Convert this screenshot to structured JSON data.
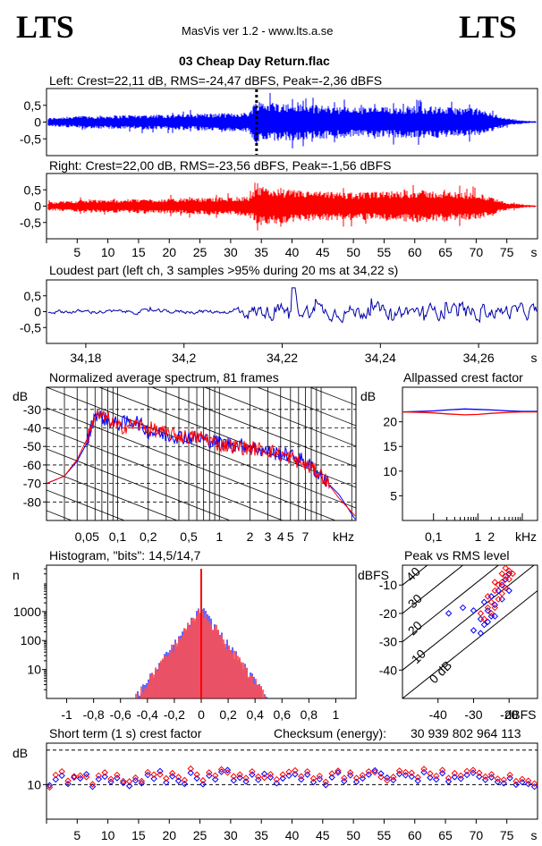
{
  "header": {
    "logo_left": "LTS",
    "logo_right": "LTS",
    "app_title": "MasVis ver 1.2 - www.lts.a.se",
    "file_title": "03 Cheap Day Return.flac"
  },
  "colors": {
    "left": "#0000ff",
    "right": "#ff0000",
    "loud": "#0000aa",
    "axis": "#000000"
  },
  "chart_data": [
    {
      "id": "left-waveform",
      "type": "area",
      "title": "Left: Crest=22,11 dB, RMS=-24,47 dBFS, Peak=-2,36 dBFS",
      "ylim": [
        -1,
        1
      ],
      "yticks": [
        "0,5",
        "0",
        "-0,5"
      ],
      "xlim": [
        0,
        80
      ],
      "marker_x": 34.22,
      "envelope_x": [
        0,
        2,
        5,
        10,
        15,
        20,
        25,
        30,
        33,
        34,
        35,
        37,
        40,
        45,
        50,
        55,
        60,
        65,
        70,
        72,
        75,
        78,
        80
      ],
      "envelope_y": [
        0.12,
        0.15,
        0.18,
        0.2,
        0.22,
        0.23,
        0.25,
        0.27,
        0.3,
        0.62,
        0.65,
        0.6,
        0.55,
        0.5,
        0.45,
        0.45,
        0.5,
        0.45,
        0.42,
        0.3,
        0.12,
        0.04,
        0.02
      ]
    },
    {
      "id": "right-waveform",
      "type": "area",
      "title": "Right: Crest=22,00 dB, RMS=-23,56 dBFS, Peak=-1,56 dBFS",
      "ylim": [
        -1,
        1
      ],
      "yticks": [
        "0,5",
        "0",
        "-0,5"
      ],
      "xlim": [
        0,
        80
      ],
      "xticks": [
        "5",
        "10",
        "15",
        "20",
        "25",
        "30",
        "35",
        "40",
        "45",
        "50",
        "55",
        "60",
        "65",
        "70",
        "75"
      ],
      "xunit": "s",
      "envelope_x": [
        0,
        2,
        5,
        10,
        15,
        20,
        25,
        30,
        33,
        34,
        35,
        37,
        40,
        45,
        50,
        55,
        60,
        65,
        70,
        72,
        75,
        78,
        80
      ],
      "envelope_y": [
        0.12,
        0.15,
        0.18,
        0.2,
        0.22,
        0.23,
        0.25,
        0.28,
        0.3,
        0.5,
        0.6,
        0.55,
        0.5,
        0.45,
        0.42,
        0.45,
        0.5,
        0.45,
        0.42,
        0.3,
        0.12,
        0.04,
        0.02
      ]
    },
    {
      "id": "loudest-part",
      "type": "line",
      "title": "Loudest part (left  ch, 3 samples >95% during 20 ms at 34,22 s)",
      "ylim": [
        -1,
        1
      ],
      "yticks": [
        "0,5",
        "0",
        "-0,5"
      ],
      "xlim": [
        34.172,
        34.272
      ],
      "xticks": [
        "34,18",
        "34,2",
        "34,22",
        "34,24",
        "34,26"
      ],
      "xunit": "s"
    },
    {
      "id": "average-spectrum",
      "type": "line",
      "title": "Normalized average spectrum, 81 frames",
      "ylabel": "dB",
      "ylim": [
        -90,
        -18
      ],
      "yticks": [
        "-30",
        "-40",
        "-50",
        "-60",
        "-70",
        "-80"
      ],
      "xscale": "log",
      "xlim": [
        0.02,
        22
      ],
      "xticks": [
        "0,05",
        "0,1",
        "0,2",
        "0,5",
        "1",
        "2",
        "3",
        "4",
        "5",
        "7"
      ],
      "xunit": "kHz",
      "x": [
        0.02,
        0.03,
        0.04,
        0.05,
        0.06,
        0.08,
        0.1,
        0.15,
        0.2,
        0.3,
        0.5,
        0.7,
        1,
        2,
        3,
        5,
        7,
        10,
        15,
        22
      ],
      "series": [
        {
          "y": [
            -70,
            -66,
            -58,
            -48,
            -32,
            -36,
            -38,
            -36,
            -42,
            -44,
            -45,
            -46,
            -48,
            -50,
            -53,
            -55,
            -58,
            -66,
            -76,
            -90
          ]
        },
        {
          "y": [
            -70,
            -66,
            -57,
            -46,
            -33,
            -35,
            -40,
            -38,
            -40,
            -43,
            -45,
            -45,
            -49,
            -51,
            -52,
            -56,
            -60,
            -65,
            -78,
            -88
          ]
        }
      ]
    },
    {
      "id": "allpassed-crest",
      "type": "line",
      "title": "Allpassed crest factor",
      "ylabel": "dB",
      "ylim": [
        0,
        27
      ],
      "yticks": [
        "20",
        "15",
        "10",
        "5"
      ],
      "xscale": "log",
      "xlim": [
        0.02,
        22
      ],
      "xticks": [
        "0,1",
        "1",
        "2"
      ],
      "xunit": "kHz",
      "x": [
        0.02,
        0.05,
        0.1,
        0.2,
        0.5,
        1,
        2,
        5,
        10,
        22
      ],
      "series": [
        {
          "y": [
            22.0,
            22.1,
            22.2,
            22.4,
            22.6,
            22.5,
            22.4,
            22.2,
            22.1,
            22.1
          ]
        },
        {
          "y": [
            22.0,
            21.9,
            21.8,
            21.6,
            21.4,
            21.5,
            21.7,
            21.9,
            22.0,
            22.0
          ]
        }
      ]
    },
    {
      "id": "histogram",
      "type": "line",
      "title": "Histogram, \"bits\": 14,5/14,7",
      "ylabel": "n",
      "yscale": "log",
      "ylim": [
        1,
        40000
      ],
      "yticks": [
        "1000",
        "100",
        "10"
      ],
      "xlim": [
        -1.15,
        1.15
      ],
      "xticks": [
        "-1",
        "-0,8",
        "-0,6",
        "-0,4",
        "-0,2",
        "0",
        "0,2",
        "0,4",
        "0,6",
        "0,8",
        "1"
      ]
    },
    {
      "id": "peak-vs-rms",
      "type": "scatter",
      "title": "Peak vs RMS level",
      "ylabel": "dBFS",
      "ylim": [
        -50,
        -3
      ],
      "yticks": [
        "-10",
        "-20",
        "-30",
        "-40"
      ],
      "xlabel": "dBFS",
      "xlim": [
        -50,
        -12
      ],
      "xticks": [
        "-40",
        "-30",
        "-20"
      ],
      "diag_labels": [
        "40",
        "30",
        "20",
        "10",
        "0 dB"
      ],
      "series": [
        {
          "points": [
            [
              -37,
              -20
            ],
            [
              -33,
              -18
            ],
            [
              -30,
              -26
            ],
            [
              -28,
              -22
            ],
            [
              -27,
              -16
            ],
            [
              -26,
              -19
            ],
            [
              -25,
              -14
            ],
            [
              -24,
              -17
            ],
            [
              -23,
              -12
            ],
            [
              -22,
              -10
            ],
            [
              -22,
              -15
            ],
            [
              -21,
              -8
            ],
            [
              -20,
              -12
            ],
            [
              -20,
              -6
            ],
            [
              -25,
              -21
            ],
            [
              -28,
              -27
            ],
            [
              -27,
              -24
            ],
            [
              -24,
              -21
            ],
            [
              -30,
              -19
            ],
            [
              -26,
              -23
            ]
          ]
        },
        {
          "points": [
            [
              -26,
              -14
            ],
            [
              -25,
              -16
            ],
            [
              -24,
              -12
            ],
            [
              -23,
              -10
            ],
            [
              -22,
              -9
            ],
            [
              -21,
              -7
            ],
            [
              -20,
              -5
            ],
            [
              -20,
              -8
            ],
            [
              -22,
              -13
            ],
            [
              -24,
              -18
            ],
            [
              -25,
              -20
            ],
            [
              -27,
              -22
            ],
            [
              -23,
              -15
            ],
            [
              -21,
              -11
            ],
            [
              -19,
              -6
            ],
            [
              -28,
              -20
            ],
            [
              -26,
              -18
            ],
            [
              -22,
              -6
            ],
            [
              -24,
              -9
            ],
            [
              -21,
              -4
            ]
          ]
        }
      ]
    },
    {
      "id": "short-term-crest",
      "type": "scatter",
      "title": "Short term (1 s) crest factor",
      "ylabel": "dB",
      "ylim": [
        0,
        22
      ],
      "yticks": [
        "10"
      ],
      "xlim": [
        0,
        80
      ],
      "xticks": [
        "5",
        "10",
        "15",
        "20",
        "25",
        "30",
        "35",
        "40",
        "45",
        "50",
        "55",
        "60",
        "65",
        "70",
        "75"
      ],
      "xunit": "s",
      "series": [
        {
          "y": [
            9.8,
            11.5,
            12.6,
            10.2,
            12.1,
            11.8,
            13.0,
            9.4,
            11.6,
            12.3,
            10.8,
            11.9,
            10.5,
            9.6,
            11.2,
            10.4,
            12.8,
            11.7,
            13.9,
            10.6,
            12.4,
            11.1,
            10.2,
            13.4,
            11.8,
            10.1,
            12.6,
            11.5,
            13.7,
            14.2,
            11.2,
            12.0,
            10.9,
            12.9,
            11.4,
            13.1,
            12.1,
            10.4,
            11.8,
            12.6,
            13.0,
            11.5,
            12.9,
            10.7,
            11.6,
            9.9,
            12.1,
            13.5,
            11.0,
            12.7,
            10.8,
            11.8,
            12.9,
            14.1,
            13.2,
            12.0,
            11.3,
            13.1,
            12.7,
            12.3,
            11.1,
            13.6,
            12.0,
            11.5,
            13.3,
            10.9,
            12.2,
            11.7,
            12.8,
            13.4,
            12.3,
            11.4,
            12.1,
            10.8,
            10.4,
            11.9,
            10.0,
            10.7,
            10.2,
            9.4
          ]
        },
        {
          "y": [
            9.2,
            12.8,
            13.8,
            11.1,
            12.4,
            12.6,
            12.2,
            10.1,
            12.6,
            13.5,
            11.6,
            12.8,
            11.0,
            10.9,
            12.0,
            11.0,
            13.6,
            12.9,
            12.9,
            11.8,
            13.3,
            12.2,
            11.3,
            14.6,
            12.9,
            11.2,
            13.5,
            12.6,
            14.4,
            13.5,
            12.4,
            12.9,
            11.9,
            13.8,
            12.3,
            12.0,
            13.0,
            11.5,
            12.9,
            13.7,
            14.1,
            12.4,
            13.8,
            11.8,
            12.5,
            10.8,
            13.2,
            14.0,
            11.9,
            13.5,
            11.9,
            12.7,
            13.8,
            13.6,
            12.2,
            11.2,
            12.2,
            14.0,
            13.6,
            13.4,
            12.1,
            14.5,
            13.2,
            12.5,
            14.2,
            11.9,
            13.3,
            12.6,
            13.9,
            14.2,
            13.4,
            12.3,
            13.0,
            11.7,
            11.4,
            12.8,
            11.0,
            11.6,
            11.1,
            10.3
          ]
        }
      ],
      "hlines": [
        10,
        20
      ]
    }
  ],
  "checksum": {
    "label": "Checksum (energy):",
    "value": "30 939 802 964 113"
  }
}
